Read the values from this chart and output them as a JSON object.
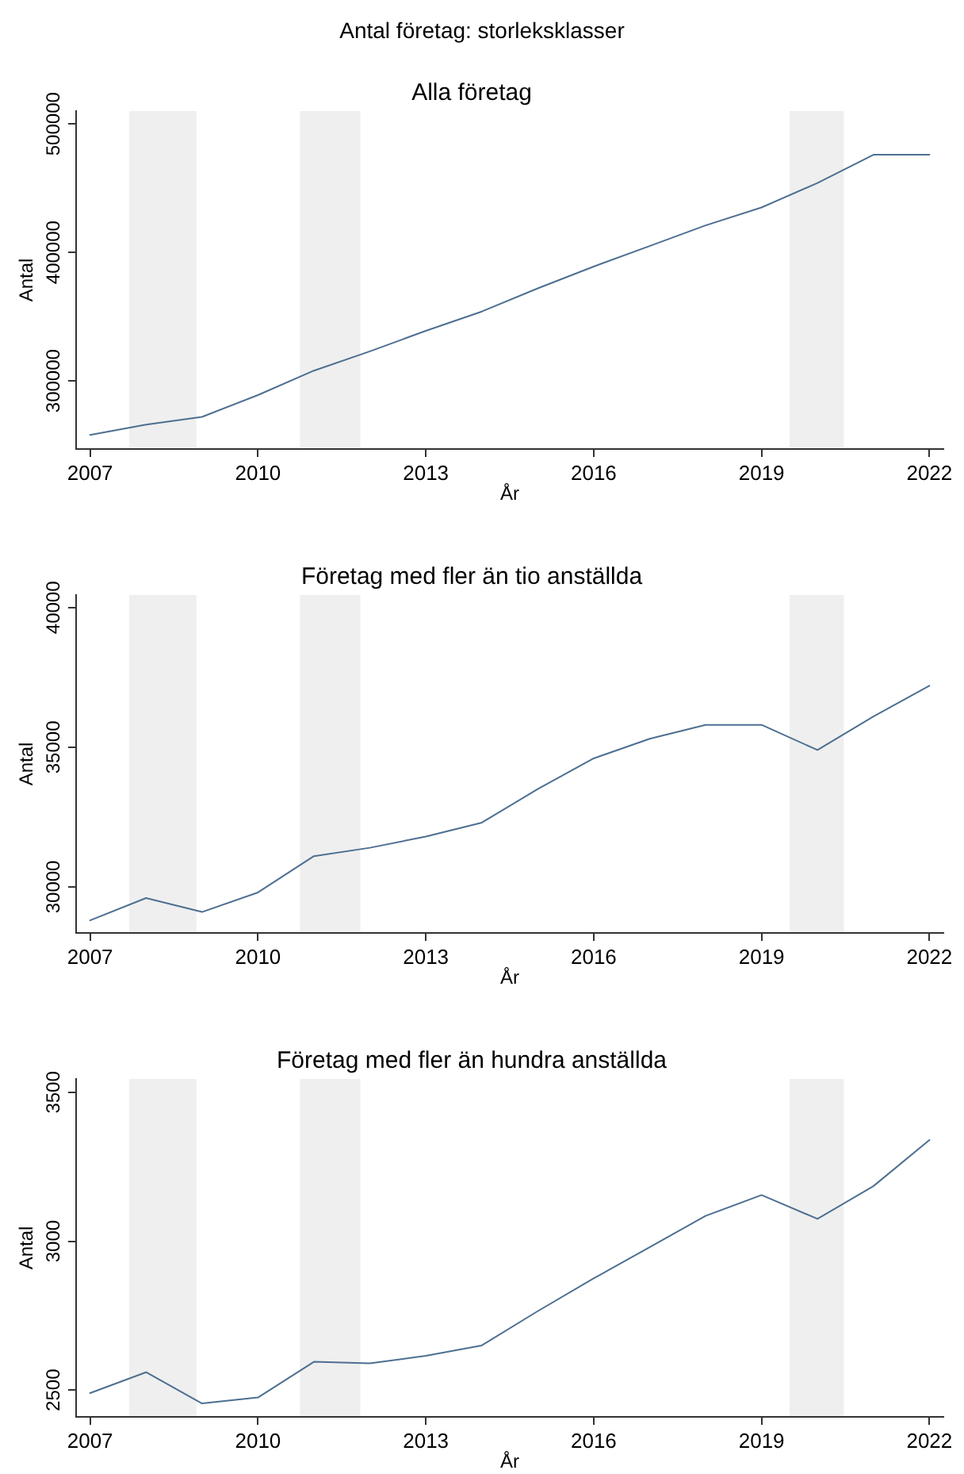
{
  "chart_data": [
    {
      "type": "other",
      "title": "Antal företag: storleksklasser"
    },
    {
      "type": "line",
      "title": "Alla företag",
      "xlabel": "År",
      "ylabel": "Antal",
      "marker": "none",
      "color": "#4d6f91",
      "x": [
        2007,
        2008,
        2009,
        2010,
        2011,
        2012,
        2013,
        2014,
        2015,
        2016,
        2017,
        2018,
        2019,
        2020,
        2021,
        2022
      ],
      "values": [
        258000,
        266000,
        272000,
        289000,
        308000,
        323000,
        339000,
        354000,
        372000,
        389000,
        405000,
        421000,
        435000,
        454000,
        476000,
        476000
      ],
      "xlim": [
        2006.75,
        2022.25
      ],
      "xticks": [
        2007,
        2010,
        2013,
        2016,
        2019,
        2022
      ],
      "ylim": [
        247000,
        510000
      ],
      "yticks": [
        300000,
        400000,
        500000
      ],
      "bands": [
        {
          "axis": "x",
          "from": 2007.7,
          "to": 2008.9,
          "color": "#efefef"
        },
        {
          "axis": "x",
          "from": 2010.75,
          "to": 2011.83,
          "color": "#efefef"
        },
        {
          "axis": "x",
          "from": 2019.5,
          "to": 2020.47,
          "color": "#efefef"
        }
      ]
    },
    {
      "type": "line",
      "title": "Företag med fler än tio anställda",
      "xlabel": "År",
      "ylabel": "Antal",
      "marker": "none",
      "color": "#4d6f91",
      "x": [
        2007,
        2008,
        2009,
        2010,
        2011,
        2012,
        2013,
        2014,
        2015,
        2016,
        2017,
        2018,
        2019,
        2020,
        2021,
        2022
      ],
      "values": [
        28800,
        29600,
        29100,
        29800,
        31100,
        31400,
        31800,
        32300,
        33500,
        34600,
        35300,
        35800,
        35800,
        34900,
        36100,
        37200
      ],
      "xlim": [
        2006.75,
        2022.25
      ],
      "xticks": [
        2007,
        2010,
        2013,
        2016,
        2019,
        2022
      ],
      "ylim": [
        28350,
        40450
      ],
      "yticks": [
        30000,
        35000,
        40000
      ],
      "bands": [
        {
          "axis": "x",
          "from": 2007.7,
          "to": 2008.9,
          "color": "#efefef"
        },
        {
          "axis": "x",
          "from": 2010.75,
          "to": 2011.83,
          "color": "#efefef"
        },
        {
          "axis": "x",
          "from": 2019.5,
          "to": 2020.47,
          "color": "#efefef"
        }
      ]
    },
    {
      "type": "line",
      "title": "Företag med fler än hundra anställda",
      "xlabel": "År",
      "ylabel": "Antal",
      "marker": "none",
      "color": "#4d6f91",
      "x": [
        2007,
        2008,
        2009,
        2010,
        2011,
        2012,
        2013,
        2014,
        2015,
        2016,
        2017,
        2018,
        2019,
        2020,
        2021,
        2022
      ],
      "values": [
        2490,
        2560,
        2455,
        2475,
        2595,
        2590,
        2615,
        2650,
        2765,
        2875,
        2980,
        3085,
        3155,
        3075,
        3185,
        3340
      ],
      "xlim": [
        2006.75,
        2022.25
      ],
      "xticks": [
        2007,
        2010,
        2013,
        2016,
        2019,
        2022
      ],
      "ylim": [
        2410,
        3545
      ],
      "yticks": [
        2500,
        3000,
        3500
      ],
      "bands": [
        {
          "axis": "x",
          "from": 2007.7,
          "to": 2008.9,
          "color": "#efefef"
        },
        {
          "axis": "x",
          "from": 2010.75,
          "to": 2011.83,
          "color": "#efefef"
        },
        {
          "axis": "x",
          "from": 2019.5,
          "to": 2020.47,
          "color": "#efefef"
        }
      ]
    }
  ]
}
